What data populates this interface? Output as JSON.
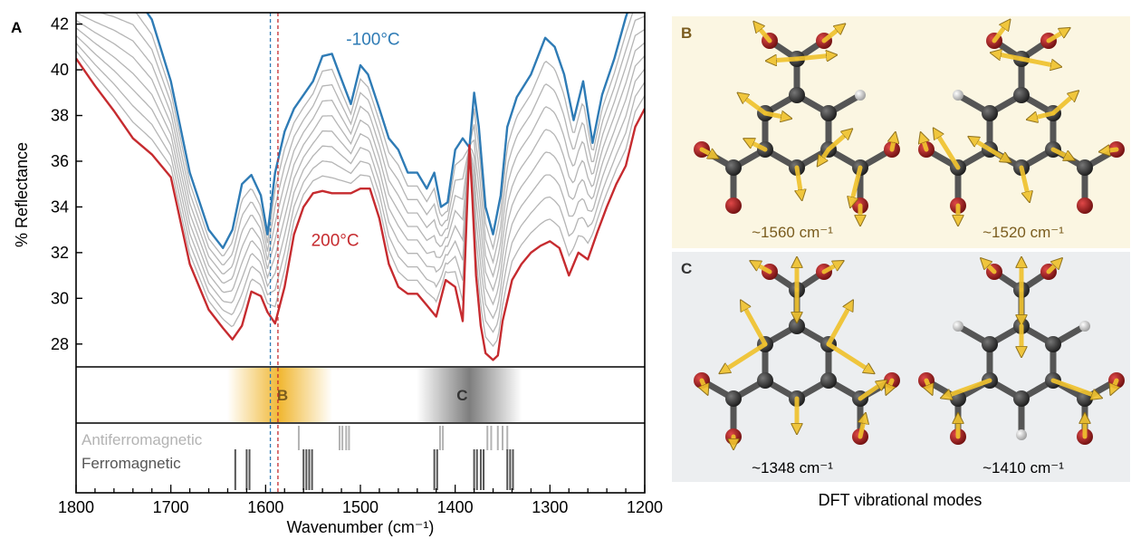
{
  "chart_data": {
    "type": "line",
    "panel_label": "A",
    "xlabel": "Wavenumber (cm⁻¹)",
    "ylabel": "% Reflectance",
    "xlim": [
      1800,
      1200
    ],
    "x_reversed": true,
    "ylim": [
      27,
      42.5
    ],
    "x_ticks": [
      1800,
      1700,
      1600,
      1500,
      1400,
      1300,
      1200
    ],
    "y_ticks": [
      28,
      30,
      32,
      34,
      36,
      38,
      40,
      42
    ],
    "grid": false,
    "annotations": [
      {
        "text": "-100°C",
        "color": "#2e7bb5",
        "x": 1515,
        "y": 41.1
      },
      {
        "text": "200°C",
        "color": "#c62b2f",
        "x": 1552,
        "y": 32.3
      }
    ],
    "reference_lines": [
      {
        "x": 1595,
        "color": "#2e7bb5",
        "style": "dashed"
      },
      {
        "x": 1587,
        "color": "#c62b2f",
        "style": "dashed"
      }
    ],
    "series": [
      {
        "color": "#2e7bb5",
        "x": [
          1800,
          1780,
          1760,
          1740,
          1720,
          1700,
          1680,
          1660,
          1645,
          1635,
          1625,
          1615,
          1605,
          1598,
          1590,
          1580,
          1570,
          1560,
          1550,
          1540,
          1530,
          1522,
          1510,
          1500,
          1492,
          1480,
          1470,
          1460,
          1450,
          1440,
          1430,
          1422,
          1415,
          1408,
          1400,
          1392,
          1385,
          1380,
          1375,
          1368,
          1360,
          1352,
          1345,
          1335,
          1320,
          1305,
          1295,
          1285,
          1275,
          1265,
          1255,
          1245,
          1232,
          1220,
          1210,
          1200
        ],
        "y": [
          43.5,
          43.5,
          43.5,
          43.4,
          42.2,
          39.5,
          35.5,
          33.0,
          32.2,
          33.0,
          35.0,
          35.4,
          34.5,
          32.8,
          35.5,
          37.3,
          38.3,
          38.9,
          39.5,
          40.6,
          40.7,
          39.8,
          38.5,
          40.2,
          39.8,
          38.3,
          37.0,
          36.5,
          35.5,
          35.5,
          34.8,
          35.5,
          34.0,
          34.2,
          36.5,
          37.0,
          36.6,
          39.0,
          37.5,
          34.0,
          32.8,
          34.5,
          37.5,
          38.8,
          39.8,
          41.4,
          41.0,
          39.8,
          37.8,
          39.5,
          36.8,
          38.9,
          40.5,
          42.3,
          43.5,
          43.5
        ]
      },
      {
        "color": "#c62b2f",
        "x": [
          1800,
          1780,
          1760,
          1740,
          1720,
          1700,
          1680,
          1660,
          1645,
          1635,
          1625,
          1615,
          1605,
          1598,
          1590,
          1580,
          1570,
          1560,
          1550,
          1540,
          1530,
          1520,
          1510,
          1500,
          1490,
          1480,
          1470,
          1460,
          1450,
          1440,
          1430,
          1420,
          1410,
          1400,
          1392,
          1385,
          1382,
          1378,
          1373,
          1368,
          1360,
          1355,
          1350,
          1340,
          1330,
          1320,
          1310,
          1300,
          1290,
          1280,
          1270,
          1260,
          1250,
          1240,
          1230,
          1220,
          1210,
          1200
        ],
        "y": [
          40.5,
          39.3,
          38.2,
          37.0,
          36.3,
          35.3,
          31.5,
          29.5,
          28.7,
          28.2,
          28.8,
          30.3,
          30.1,
          29.4,
          28.9,
          30.5,
          32.8,
          34.0,
          34.6,
          34.7,
          34.6,
          34.6,
          34.6,
          34.8,
          34.8,
          33.5,
          31.5,
          30.5,
          30.2,
          30.2,
          29.7,
          29.2,
          30.8,
          30.5,
          29.0,
          36.7,
          34.5,
          31.0,
          28.8,
          27.6,
          27.3,
          27.5,
          29.0,
          30.8,
          31.5,
          32.0,
          32.3,
          32.5,
          32.2,
          31.0,
          32.0,
          31.7,
          32.9,
          34.0,
          35.0,
          35.8,
          37.5,
          38.3
        ]
      }
    ],
    "inner_series_count": 8,
    "lower_panel": {
      "regions": [
        {
          "label": "B",
          "x": 1585,
          "color": "#f0b429",
          "label_color": "#7a5c1e"
        },
        {
          "label": "C",
          "x": 1385,
          "color": "#777777",
          "label_color": "#333333"
        }
      ],
      "calc_rows": [
        {
          "label": "Antiferromagnetic",
          "color": "#b3b3b3",
          "lines": [
            1565,
            1522,
            1519,
            1515,
            1512,
            1416,
            1413,
            1366,
            1362,
            1355,
            1350,
            1345
          ]
        },
        {
          "label": "Ferromagnetic",
          "color": "#555555",
          "lines": [
            1632,
            1620,
            1617,
            1560,
            1557,
            1554,
            1551,
            1422,
            1419,
            1380,
            1377,
            1373,
            1370,
            1345,
            1342,
            1339
          ]
        }
      ]
    }
  },
  "panel_b": {
    "label": "B",
    "modes": [
      "~1560 cm⁻¹",
      "~1520 cm⁻¹"
    ],
    "colors": {
      "bg": "#fbf6e2",
      "label": "#7a5c1e"
    }
  },
  "panel_c": {
    "label": "C",
    "modes": [
      "~1348 cm⁻¹",
      "~1410 cm⁻¹"
    ],
    "colors": {
      "bg": "#eceef0",
      "label": "#333333"
    }
  },
  "footer_caption": "DFT vibrational modes"
}
